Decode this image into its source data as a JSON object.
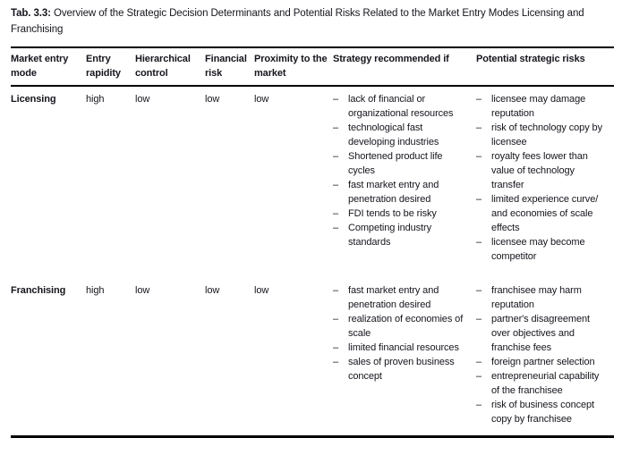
{
  "caption": {
    "label": "Tab. 3.3:",
    "text": " Overview of the Strategic Decision Determinants and Potential Risks Related to the Market Entry Modes Licensing and Franchising"
  },
  "table": {
    "headers": [
      "Market entry mode",
      "Entry rapidity",
      "Hierarchical control",
      "Financial risk",
      "Proximity to the market",
      "Strategy recommended if",
      "Potential strategic risks"
    ],
    "rows": [
      {
        "mode": "Licensing",
        "entry_rapidity": "high",
        "hierarchical_control": "low",
        "financial_risk": "low",
        "proximity": "low",
        "strategy": [
          "lack of financial or organizational resources",
          "technological fast developing industries",
          "Shortened product life cycles",
          "fast market entry and penetration desired",
          "FDI tends to be risky",
          "Competing industry standards"
        ],
        "risks": [
          "licensee may damage reputation",
          "risk of technology copy by licensee",
          "royalty fees lower than value of technology transfer",
          "limited experience curve/ and economies of scale effects",
          "licensee may become competitor"
        ]
      },
      {
        "mode": "Franchising",
        "entry_rapidity": "high",
        "hierarchical_control": "low",
        "financial_risk": "low",
        "proximity": "low",
        "strategy": [
          "fast market entry and penetration desired",
          "realization of economies of scale",
          "limited financial resources",
          "sales of proven business concept"
        ],
        "risks": [
          "franchisee may harm reputation",
          "partner's disagreement over objectives and franchise fees",
          "foreign partner selection",
          "entrepreneurial capability of the franchisee",
          "risk of business concept copy by franchisee"
        ]
      }
    ]
  }
}
